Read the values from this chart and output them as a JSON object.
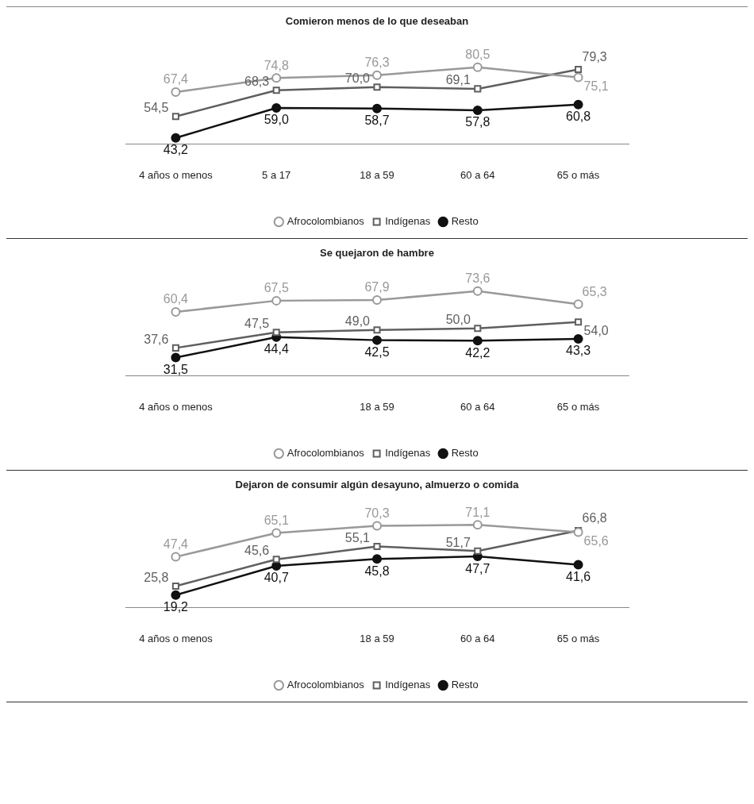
{
  "chart_data": [
    {
      "type": "line",
      "title": "Comieron menos de lo que deseaban",
      "categories": [
        "4 años o menos",
        "5 a 17",
        "18 a 59",
        "60 a 64",
        "65 o más"
      ],
      "legend": "bottom",
      "grid": false,
      "series": [
        {
          "name": "Afrocolombianos",
          "color": "#999999",
          "marker": "circle",
          "values": [
            67.4,
            74.8,
            76.3,
            80.5,
            75.1
          ],
          "value_labels": [
            "67,4",
            "74,8",
            "76,3",
            "80,5",
            "75,1"
          ]
        },
        {
          "name": "Indígenas",
          "color": "#5f5f5f",
          "marker": "square",
          "values": [
            54.5,
            68.3,
            70.0,
            69.1,
            79.3
          ],
          "value_labels": [
            "54,5",
            "68,3",
            "70,0",
            "69,1",
            "79,3"
          ]
        },
        {
          "name": "Resto",
          "color": "#111111",
          "marker": "circle",
          "values": [
            43.2,
            59.0,
            58.7,
            57.8,
            60.8
          ],
          "value_labels": [
            "43,2",
            "59,0",
            "58,7",
            "57,8",
            "60,8"
          ]
        }
      ]
    },
    {
      "type": "line",
      "title": "Se quejaron de hambre",
      "categories": [
        "4 años o menos",
        null,
        "18 a 59",
        "60 a 64",
        "65 o más"
      ],
      "legend": "bottom",
      "grid": false,
      "series": [
        {
          "name": "Afrocolombianos",
          "color": "#999999",
          "marker": "circle",
          "values": [
            60.4,
            67.5,
            67.9,
            73.6,
            65.3
          ],
          "value_labels": [
            "60,4",
            "67,5",
            "67,9",
            "73,6",
            "65,3"
          ]
        },
        {
          "name": "Indígenas",
          "color": "#5f5f5f",
          "marker": "square",
          "values": [
            37.6,
            47.5,
            49.0,
            50.0,
            54.0
          ],
          "value_labels": [
            "37,6",
            "47,5",
            "49,0",
            "50,0",
            "54,0"
          ]
        },
        {
          "name": "Resto",
          "color": "#111111",
          "marker": "circle",
          "values": [
            31.5,
            44.4,
            42.5,
            42.2,
            43.3
          ],
          "value_labels": [
            "31,5",
            "44,4",
            "42,5",
            "42,2",
            "43,3"
          ]
        }
      ]
    },
    {
      "type": "line",
      "title": "Dejaron de consumir algún desayuno, almuerzo o comida",
      "categories": [
        "4 años o menos",
        null,
        "18 a 59",
        "60 a 64",
        "65 o más"
      ],
      "legend": "bottom",
      "grid": false,
      "series": [
        {
          "name": "Afrocolombianos",
          "color": "#999999",
          "marker": "circle",
          "values": [
            47.4,
            65.1,
            70.3,
            71.1,
            65.6
          ],
          "value_labels": [
            "47,4",
            "65,1",
            "70,3",
            "71,1",
            "65,6"
          ]
        },
        {
          "name": "Indígenas",
          "color": "#5f5f5f",
          "marker": "square",
          "values": [
            25.8,
            45.6,
            55.1,
            51.7,
            66.8
          ],
          "value_labels": [
            "25,8",
            "45,6",
            "55,1",
            "51,7",
            "66,8"
          ]
        },
        {
          "name": "Resto",
          "color": "#111111",
          "marker": "circle",
          "values": [
            19.2,
            40.7,
            45.8,
            47.7,
            41.6
          ],
          "value_labels": [
            "19,2",
            "40,7",
            "45,8",
            "47,7",
            "41,6"
          ]
        }
      ]
    }
  ]
}
